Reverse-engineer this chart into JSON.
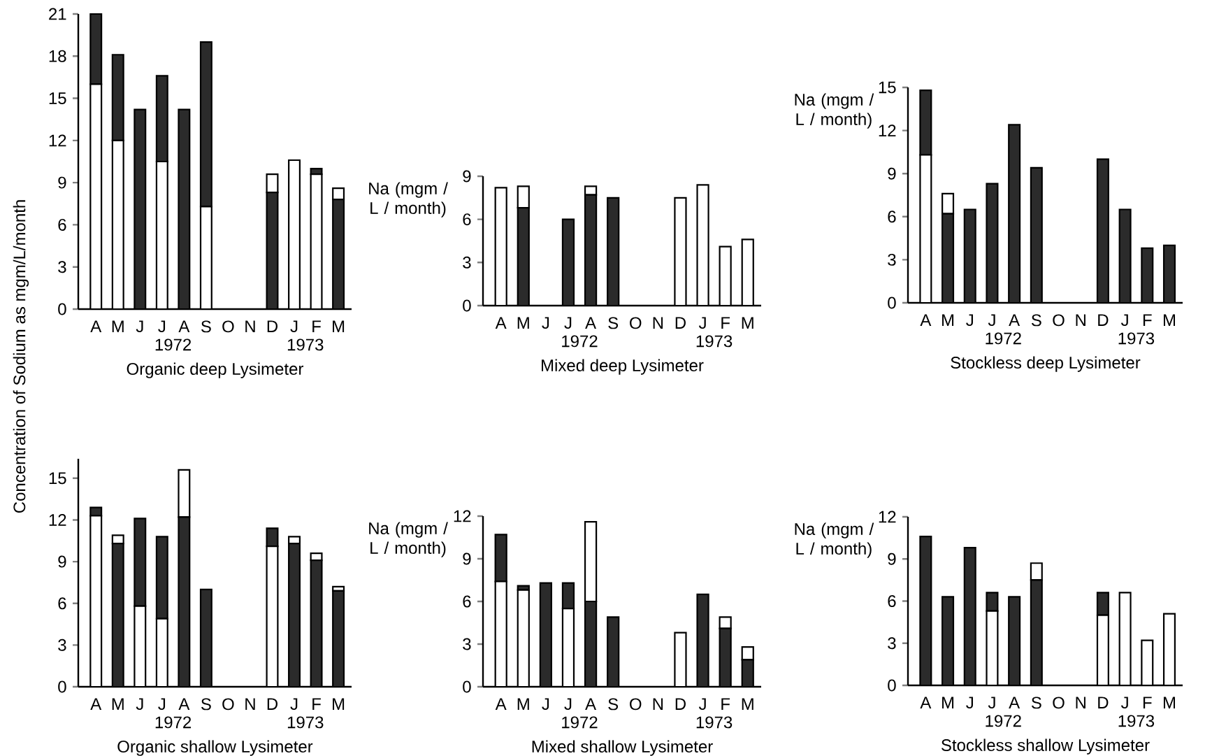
{
  "chart_data": [
    {
      "type": "bar",
      "stacked": true,
      "ylabel": "Concentration of Sodium as mgm/L/month",
      "xlabel": "Organic deep Lysimeter",
      "annotations": [
        "1972",
        "1973"
      ],
      "categories": [
        "A",
        "M",
        "J",
        "J",
        "A",
        "S",
        "O",
        "N",
        "D",
        "J",
        "F",
        "M"
      ],
      "ylim": [
        0,
        21
      ],
      "yticks": [
        0,
        3,
        6,
        9,
        12,
        15,
        18,
        21
      ],
      "series": [
        {
          "color": "#ffffff",
          "values": [
            16,
            12,
            0,
            10.5,
            0,
            7.3,
            0,
            0,
            0,
            10.6,
            9.6,
            0
          ]
        },
        {
          "color": "#2b2b2b",
          "values": [
            5,
            6.1,
            14.2,
            6.1,
            14.2,
            11.7,
            0,
            0,
            8.3,
            0,
            0.4,
            7.8
          ]
        },
        {
          "color": "#ffffff",
          "values": [
            0,
            0,
            0,
            0,
            0,
            0,
            0,
            0,
            1.3,
            0,
            0,
            0.8
          ]
        }
      ]
    },
    {
      "type": "bar",
      "stacked": true,
      "ylabel": "Na (mgm / L / month)",
      "xlabel": "Mixed deep Lysimeter",
      "annotations": [
        "1972",
        "1973"
      ],
      "categories": [
        "A",
        "M",
        "J",
        "J",
        "A",
        "S",
        "O",
        "N",
        "D",
        "J",
        "F",
        "M"
      ],
      "ylim": [
        0,
        9
      ],
      "yticks": [
        0,
        3,
        6,
        9
      ],
      "series": [
        {
          "color": "#ffffff",
          "values": [
            8.2,
            0,
            0,
            0,
            0,
            0,
            0,
            0,
            7.5,
            8.4,
            4.1,
            4.6
          ]
        },
        {
          "color": "#2b2b2b",
          "values": [
            0,
            6.8,
            0,
            6.0,
            7.7,
            7.5,
            0,
            0,
            0,
            0,
            0,
            0
          ]
        },
        {
          "color": "#ffffff",
          "values": [
            0,
            1.5,
            0,
            0,
            0.6,
            0,
            0,
            0,
            0,
            0,
            0,
            0
          ]
        }
      ]
    },
    {
      "type": "bar",
      "stacked": true,
      "ylabel": "Na (mgm / L / month)",
      "xlabel": "Stockless deep Lysimeter",
      "annotations": [
        "1972",
        "1973"
      ],
      "categories": [
        "A",
        "M",
        "J",
        "J",
        "A",
        "S",
        "O",
        "N",
        "D",
        "J",
        "F",
        "M"
      ],
      "ylim": [
        0,
        15
      ],
      "yticks": [
        0,
        3,
        6,
        9,
        12,
        15
      ],
      "series": [
        {
          "color": "#ffffff",
          "values": [
            10.3,
            0,
            0,
            0,
            0,
            0,
            0,
            0,
            0,
            0,
            0,
            0
          ]
        },
        {
          "color": "#2b2b2b",
          "values": [
            4.5,
            6.2,
            6.5,
            8.3,
            12.4,
            9.4,
            0,
            0,
            10.0,
            6.5,
            3.8,
            4.0
          ]
        },
        {
          "color": "#ffffff",
          "values": [
            0,
            1.4,
            0,
            0,
            0,
            0,
            0,
            0,
            0,
            0,
            0,
            0
          ]
        }
      ]
    },
    {
      "type": "bar",
      "stacked": true,
      "xlabel": "Organic shallow Lysimeter",
      "annotations": [
        "1972",
        "1973"
      ],
      "categories": [
        "A",
        "M",
        "J",
        "J",
        "A",
        "S",
        "O",
        "N",
        "D",
        "J",
        "F",
        "M"
      ],
      "ylim": [
        0,
        16.4
      ],
      "yticks": [
        0,
        3,
        6,
        9,
        12,
        15
      ],
      "series": [
        {
          "color": "#ffffff",
          "values": [
            12.3,
            0,
            5.8,
            4.9,
            0,
            0,
            0,
            0,
            10.1,
            0,
            0,
            0
          ]
        },
        {
          "color": "#2b2b2b",
          "values": [
            0.6,
            10.3,
            6.3,
            5.9,
            12.2,
            7.0,
            0,
            0,
            1.3,
            10.3,
            9.1,
            6.9
          ]
        },
        {
          "color": "#ffffff",
          "values": [
            0,
            0.6,
            0,
            0,
            3.4,
            0,
            0,
            0,
            0,
            0.5,
            0.5,
            0.3
          ]
        }
      ]
    },
    {
      "type": "bar",
      "stacked": true,
      "ylabel": "Na (mgm / L / month)",
      "xlabel": "Mixed shallow Lysimeter",
      "annotations": [
        "1972",
        "1973"
      ],
      "categories": [
        "A",
        "M",
        "J",
        "J",
        "A",
        "S",
        "O",
        "N",
        "D",
        "J",
        "F",
        "M"
      ],
      "ylim": [
        0,
        12
      ],
      "yticks": [
        0,
        3,
        6,
        9,
        12
      ],
      "series": [
        {
          "color": "#ffffff",
          "values": [
            7.4,
            6.8,
            0,
            5.5,
            0,
            0,
            0,
            0,
            3.8,
            0,
            0,
            0
          ]
        },
        {
          "color": "#2b2b2b",
          "values": [
            3.3,
            0.3,
            7.3,
            1.8,
            6.0,
            4.9,
            0,
            0,
            0,
            6.5,
            4.1,
            1.9
          ]
        },
        {
          "color": "#ffffff",
          "values": [
            0,
            0,
            0,
            0,
            5.6,
            0,
            0,
            0,
            0,
            0,
            0.8,
            0.9
          ]
        }
      ]
    },
    {
      "type": "bar",
      "stacked": true,
      "ylabel": "Na (mgm / L / month)",
      "xlabel": "Stockless shallow Lysimeter",
      "annotations": [
        "1972",
        "1973"
      ],
      "categories": [
        "A",
        "M",
        "J",
        "J",
        "A",
        "S",
        "O",
        "N",
        "D",
        "J",
        "F",
        "M"
      ],
      "ylim": [
        0,
        12
      ],
      "yticks": [
        0,
        3,
        6,
        9,
        12
      ],
      "series": [
        {
          "color": "#ffffff",
          "values": [
            0,
            0,
            0,
            5.3,
            0,
            0,
            0,
            0,
            5.0,
            6.6,
            3.2,
            5.1
          ]
        },
        {
          "color": "#2b2b2b",
          "values": [
            10.6,
            6.3,
            9.8,
            1.3,
            6.3,
            7.5,
            0,
            0,
            1.6,
            0,
            0,
            0
          ]
        },
        {
          "color": "#ffffff",
          "values": [
            0,
            0,
            0,
            0,
            0,
            1.2,
            0,
            0,
            0,
            0,
            0,
            0
          ]
        }
      ]
    }
  ]
}
